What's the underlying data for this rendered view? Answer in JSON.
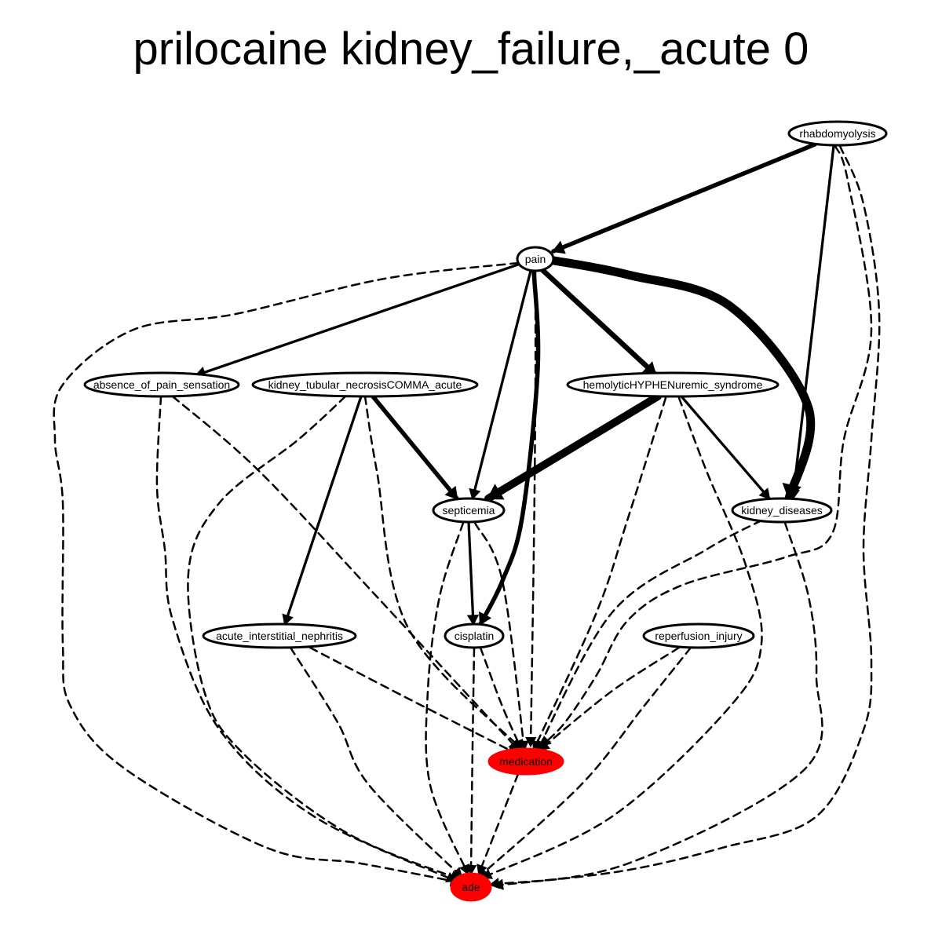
{
  "title": "prilocaine kidney_failure,_acute 0",
  "colors": {
    "highlight": "#ff0000",
    "stroke": "#000000",
    "fill": "#ffffff"
  },
  "nodes": [
    {
      "id": "rhabdomyolysis",
      "label": "rhabdomyolysis",
      "highlight": false
    },
    {
      "id": "pain",
      "label": "pain",
      "highlight": false
    },
    {
      "id": "absence_of_pain_sensation",
      "label": "absence_of_pain_sensation",
      "highlight": false
    },
    {
      "id": "kidney_tubular_necrosis",
      "label": "kidney_tubular_necrosisCOMMA_acute",
      "highlight": false
    },
    {
      "id": "hus",
      "label": "hemolyticHYPHENuremic_syndrome",
      "highlight": false
    },
    {
      "id": "septicemia",
      "label": "septicemia",
      "highlight": false
    },
    {
      "id": "kidney_diseases",
      "label": "kidney_diseases",
      "highlight": false
    },
    {
      "id": "acute_interstitial_nephritis",
      "label": "acute_interstitial_nephritis",
      "highlight": false
    },
    {
      "id": "cisplatin",
      "label": "cisplatin",
      "highlight": false
    },
    {
      "id": "reperfusion_injury",
      "label": "reperfusion_injury",
      "highlight": false
    },
    {
      "id": "medication",
      "label": "medication",
      "highlight": true
    },
    {
      "id": "ade",
      "label": "ade",
      "highlight": true
    }
  ],
  "edges": [
    {
      "from": "rhabdomyolysis",
      "to": "pain",
      "style": "solid",
      "weight": 5
    },
    {
      "from": "rhabdomyolysis",
      "to": "kidney_diseases",
      "style": "solid",
      "weight": 3
    },
    {
      "from": "rhabdomyolysis",
      "to": "medication",
      "style": "dashed",
      "weight": 1
    },
    {
      "from": "rhabdomyolysis",
      "to": "ade",
      "style": "dashed",
      "weight": 1
    },
    {
      "from": "pain",
      "to": "absence_of_pain_sensation",
      "style": "solid",
      "weight": 3
    },
    {
      "from": "pain",
      "to": "septicemia",
      "style": "solid",
      "weight": 3
    },
    {
      "from": "pain",
      "to": "cisplatin",
      "style": "solid",
      "weight": 5
    },
    {
      "from": "pain",
      "to": "hus",
      "style": "solid",
      "weight": 6
    },
    {
      "from": "pain",
      "to": "kidney_diseases",
      "style": "solid",
      "weight": 10
    },
    {
      "from": "pain",
      "to": "medication",
      "style": "dashed",
      "weight": 1
    },
    {
      "from": "pain",
      "to": "ade",
      "style": "dashed",
      "weight": 1
    },
    {
      "from": "absence_of_pain_sensation",
      "to": "medication",
      "style": "dashed",
      "weight": 1
    },
    {
      "from": "absence_of_pain_sensation",
      "to": "ade",
      "style": "dashed",
      "weight": 1
    },
    {
      "from": "kidney_tubular_necrosis",
      "to": "septicemia",
      "style": "solid",
      "weight": 5
    },
    {
      "from": "kidney_tubular_necrosis",
      "to": "acute_interstitial_nephritis",
      "style": "solid",
      "weight": 3
    },
    {
      "from": "kidney_tubular_necrosis",
      "to": "medication",
      "style": "dashed",
      "weight": 1
    },
    {
      "from": "kidney_tubular_necrosis",
      "to": "ade",
      "style": "dashed",
      "weight": 1
    },
    {
      "from": "hus",
      "to": "septicemia",
      "style": "solid",
      "weight": 9
    },
    {
      "from": "hus",
      "to": "kidney_diseases",
      "style": "solid",
      "weight": 3
    },
    {
      "from": "hus",
      "to": "medication",
      "style": "dashed",
      "weight": 1
    },
    {
      "from": "hus",
      "to": "ade",
      "style": "dashed",
      "weight": 1
    },
    {
      "from": "septicemia",
      "to": "cisplatin",
      "style": "solid",
      "weight": 3
    },
    {
      "from": "septicemia",
      "to": "medication",
      "style": "dashed",
      "weight": 1
    },
    {
      "from": "septicemia",
      "to": "ade",
      "style": "dashed",
      "weight": 1
    },
    {
      "from": "kidney_diseases",
      "to": "medication",
      "style": "dashed",
      "weight": 1
    },
    {
      "from": "kidney_diseases",
      "to": "ade",
      "style": "dashed",
      "weight": 1
    },
    {
      "from": "acute_interstitial_nephritis",
      "to": "medication",
      "style": "dashed",
      "weight": 1
    },
    {
      "from": "acute_interstitial_nephritis",
      "to": "ade",
      "style": "dashed",
      "weight": 1
    },
    {
      "from": "cisplatin",
      "to": "medication",
      "style": "dashed",
      "weight": 1
    },
    {
      "from": "cisplatin",
      "to": "ade",
      "style": "dashed",
      "weight": 1
    },
    {
      "from": "reperfusion_injury",
      "to": "medication",
      "style": "dashed",
      "weight": 1
    },
    {
      "from": "reperfusion_injury",
      "to": "ade",
      "style": "dashed",
      "weight": 1
    },
    {
      "from": "medication",
      "to": "ade",
      "style": "dashed",
      "weight": 1
    }
  ]
}
